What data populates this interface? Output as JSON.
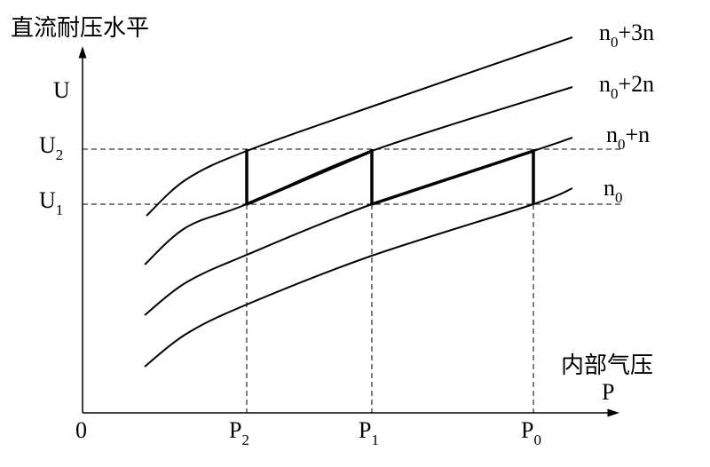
{
  "y_axis": {
    "title": "直流耐压水平",
    "symbol": "U"
  },
  "x_axis": {
    "title": "内部气压",
    "symbol": "P",
    "origin": "0"
  },
  "levels": [
    {
      "base": "U",
      "sub": "2"
    },
    {
      "base": "U",
      "sub": "1"
    }
  ],
  "points": [
    {
      "base": "P",
      "sub": "2"
    },
    {
      "base": "P",
      "sub": "1"
    },
    {
      "base": "P",
      "sub": "0"
    }
  ],
  "curves": [
    {
      "base": "n",
      "sub": "0",
      "rest": "+3n"
    },
    {
      "base": "n",
      "sub": "0",
      "rest": "+2n"
    },
    {
      "base": "n",
      "sub": "0",
      "rest": "+n"
    },
    {
      "base": "n",
      "sub": "0",
      "rest": ""
    }
  ]
}
